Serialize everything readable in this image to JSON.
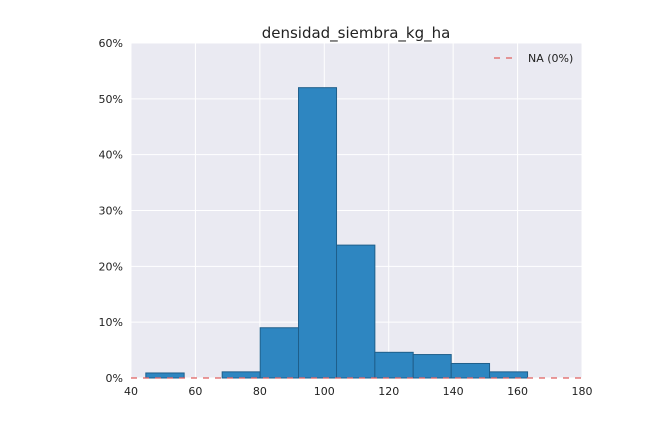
{
  "chart_data": {
    "type": "bar",
    "title": "densidad_siembra_kg_ha",
    "xlabel": "",
    "ylabel": "",
    "xlim": [
      40,
      180
    ],
    "ylim": [
      0,
      60
    ],
    "x_ticks": [
      "40",
      "60",
      "80",
      "100",
      "120",
      "140",
      "160",
      "180"
    ],
    "y_ticks": [
      "0%",
      "10%",
      "20%",
      "30%",
      "40%",
      "50%",
      "60%"
    ],
    "bins": [
      {
        "x0": 44.6,
        "x1": 56.5,
        "value": 0.9
      },
      {
        "x0": 68.3,
        "x1": 80.1,
        "value": 1.1
      },
      {
        "x0": 80.1,
        "x1": 92.0,
        "value": 9.0
      },
      {
        "x0": 92.0,
        "x1": 103.8,
        "value": 52.0
      },
      {
        "x0": 103.8,
        "x1": 115.7,
        "value": 23.8
      },
      {
        "x0": 115.7,
        "x1": 127.6,
        "value": 4.6
      },
      {
        "x0": 127.6,
        "x1": 139.4,
        "value": 4.2
      },
      {
        "x0": 139.4,
        "x1": 151.3,
        "value": 2.6
      },
      {
        "x0": 151.3,
        "x1": 163.1,
        "value": 1.1
      }
    ],
    "na_line": {
      "label": "NA (0%)",
      "value": 0
    },
    "legend_position": "top-right",
    "grid": true,
    "colors": {
      "background": "#eaeaf2",
      "grid": "#ffffff",
      "bar_fill": "#2e86c1",
      "bar_stroke": "#1f5f8b",
      "na_line": "#e06060"
    }
  }
}
